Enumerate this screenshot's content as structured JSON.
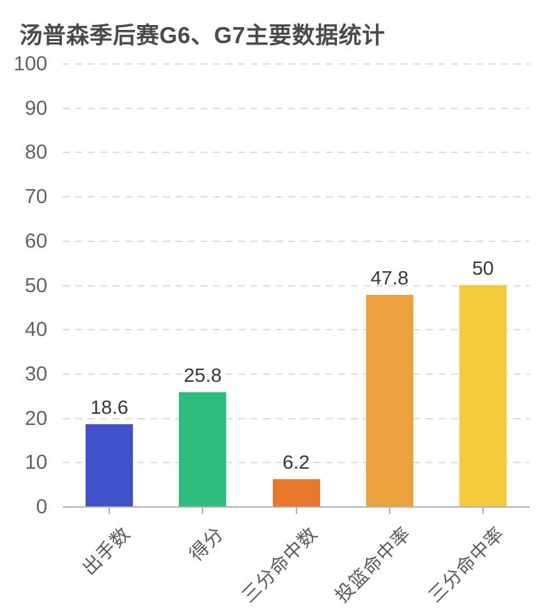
{
  "header": {
    "title": "汤普森季后赛G6、G7主要数据统计",
    "title_color": "#4a4a4a"
  },
  "chart_data": {
    "type": "bar",
    "title": "汤普森季后赛G6、G7主要数据统计",
    "categories": [
      "出手数",
      "得分",
      "三分命中数",
      "投篮命中率",
      "三分命中率"
    ],
    "values": [
      18.6,
      25.8,
      6.2,
      47.8,
      50
    ],
    "value_labels": [
      "18.6",
      "25.8",
      "6.2",
      "47.8",
      "50"
    ],
    "bar_colors": [
      "#4150cb",
      "#2fbd7e",
      "#e8782b",
      "#eca33f",
      "#f4cc3b"
    ],
    "xlabel": "",
    "ylabel": "",
    "ylim": [
      0,
      100
    ],
    "yticks": [
      0,
      10,
      20,
      30,
      40,
      50,
      60,
      70,
      80,
      90,
      100
    ],
    "grid": true,
    "grid_color": "#dedede",
    "axis_color": "#b1b1b1",
    "y_label_color": "#616161",
    "x_label_color": "#5a5a5a",
    "value_label_color": "#383838",
    "x_label_rotation": 45,
    "legend": "none"
  }
}
